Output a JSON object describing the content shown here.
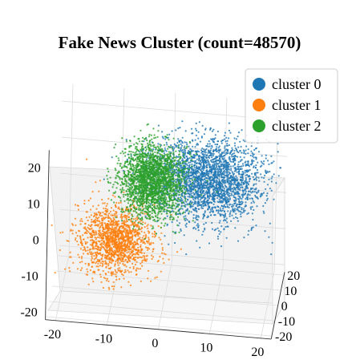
{
  "chart_data": {
    "type": "scatter",
    "projection": "3d",
    "title": "Fake News Cluster (count=48570)",
    "legend": {
      "placement": "top-right"
    },
    "grid": true,
    "axes": {
      "x": {
        "ticks": [
          -20,
          -10,
          0,
          10,
          20
        ],
        "range": [
          -22,
          22
        ]
      },
      "y": {
        "ticks": [
          -20,
          -10,
          0,
          10,
          20
        ],
        "range": [
          -22,
          22
        ]
      },
      "z": {
        "ticks": [
          -20,
          -10,
          0,
          10,
          20
        ],
        "range": [
          -22,
          25
        ]
      }
    },
    "series": [
      {
        "name": "cluster 0",
        "color": "#1f77b4",
        "approx_center": [
          8,
          -2,
          12
        ],
        "approx_spread": [
          9,
          10,
          9
        ]
      },
      {
        "name": "cluster 1",
        "color": "#ff7f0e",
        "approx_center": [
          -10,
          0,
          -8
        ],
        "approx_spread": [
          6,
          8,
          7
        ]
      },
      {
        "name": "cluster 2",
        "color": "#2ca02c",
        "approx_center": [
          -3,
          -1,
          10
        ],
        "approx_spread": [
          5,
          6,
          8
        ]
      }
    ]
  }
}
